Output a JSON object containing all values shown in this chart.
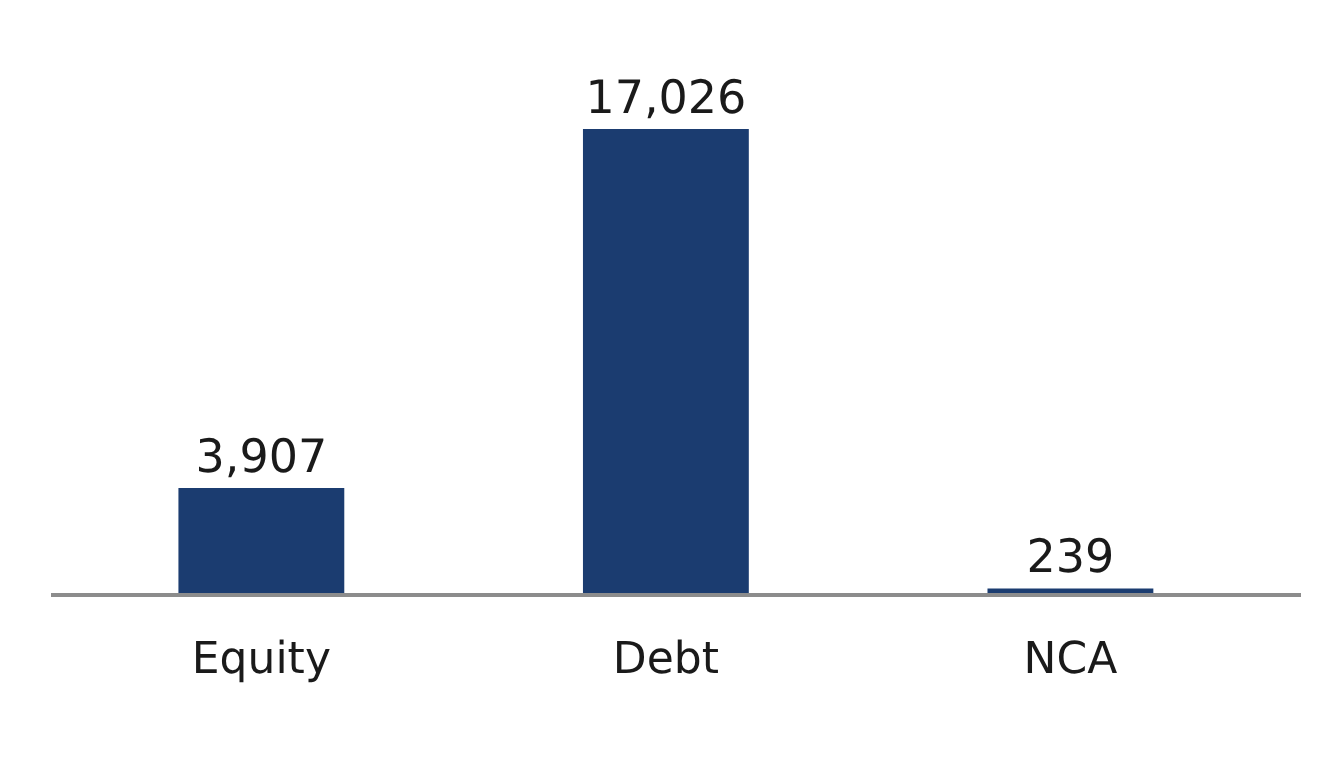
{
  "chart_data": {
    "type": "bar",
    "categories": [
      "Equity",
      "Debt",
      "NCA"
    ],
    "values": [
      3907,
      17026,
      239
    ],
    "value_labels": [
      "3,907",
      "17,026",
      "239"
    ],
    "color": "#1b3c70"
  }
}
